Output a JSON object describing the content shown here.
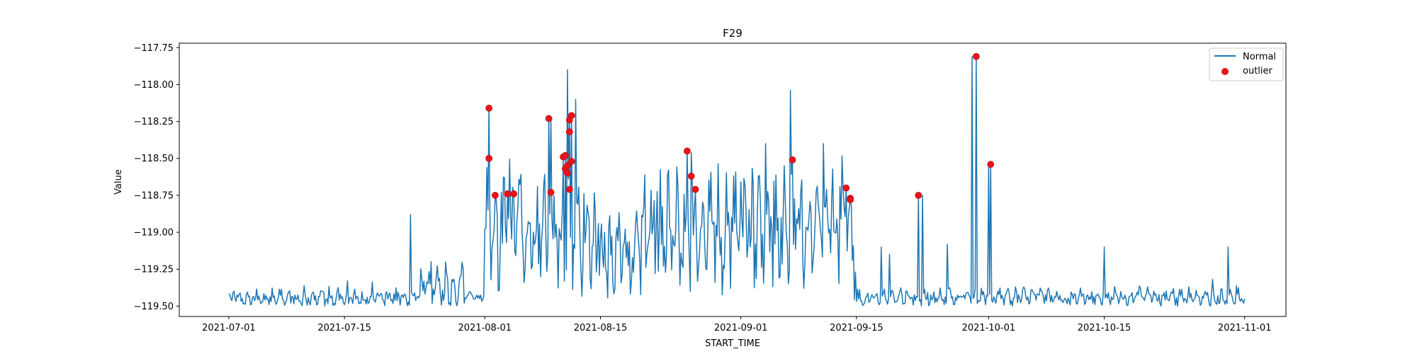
{
  "chart_data": {
    "type": "line",
    "title": "F29",
    "xlabel": "START_TIME",
    "ylabel": "Value",
    "xlim": [
      "2021-06-25",
      "2021-11-06"
    ],
    "ylim": [
      -119.57,
      -117.72
    ],
    "x_ticks": [
      "2021-07-01",
      "2021-07-15",
      "2021-08-01",
      "2021-08-15",
      "2021-09-01",
      "2021-09-15",
      "2021-10-01",
      "2021-10-15",
      "2021-11-01"
    ],
    "y_ticks": [
      -119.5,
      -119.25,
      -119.0,
      -118.75,
      -118.5,
      -118.25,
      -118.0,
      -117.75
    ],
    "y_tick_labels": [
      "−119.50",
      "−119.25",
      "−119.00",
      "−118.75",
      "−118.50",
      "−118.25",
      "−118.00",
      "−117.75"
    ],
    "grid": false,
    "legend_position": "top-right",
    "colors": {
      "normal": "#1f77b4",
      "outlier": "#e8141a"
    },
    "series": [
      {
        "name": "Normal",
        "type": "line",
        "segments": [
          {
            "start": "2021-07-01",
            "end": "2021-07-24",
            "base": -119.45,
            "amp": 0.09
          },
          {
            "start": "2021-07-24",
            "end": "2021-07-30",
            "base": -119.38,
            "amp": 0.22
          },
          {
            "start": "2021-07-30",
            "end": "2021-08-01",
            "base": -119.44,
            "amp": 0.06
          },
          {
            "start": "2021-08-01",
            "end": "2021-08-15",
            "base": -119.0,
            "amp": 0.55
          },
          {
            "start": "2021-08-15",
            "end": "2021-08-20",
            "base": -119.15,
            "amp": 0.45
          },
          {
            "start": "2021-08-20",
            "end": "2021-09-01",
            "base": -119.0,
            "amp": 0.55
          },
          {
            "start": "2021-09-01",
            "end": "2021-09-15",
            "base": -118.95,
            "amp": 0.6
          },
          {
            "start": "2021-09-15",
            "end": "2021-11-01",
            "base": -119.44,
            "amp": 0.09
          }
        ],
        "spikes": [
          {
            "x": "2021-07-23",
            "y": -118.88
          },
          {
            "x": "2021-08-03",
            "y": -118.73
          },
          {
            "x": "2021-08-09",
            "y": -118.23
          },
          {
            "x": "2021-08-11",
            "y": -117.9
          },
          {
            "x": "2021-08-12",
            "y": -118.1
          },
          {
            "x": "2021-08-26",
            "y": -118.46
          },
          {
            "x": "2021-09-04",
            "y": -118.4
          },
          {
            "x": "2021-09-07",
            "y": -118.04
          },
          {
            "x": "2021-09-11",
            "y": -118.4
          },
          {
            "x": "2021-09-18",
            "y": -119.1
          },
          {
            "x": "2021-09-19",
            "y": -119.15
          },
          {
            "x": "2021-09-23",
            "y": -118.75
          },
          {
            "x": "2021-09-26",
            "y": -119.08
          },
          {
            "x": "2021-09-29",
            "y": -117.81
          },
          {
            "x": "2021-10-01",
            "y": -118.55
          },
          {
            "x": "2021-10-15",
            "y": -119.1
          },
          {
            "x": "2021-10-30",
            "y": -119.1
          }
        ]
      },
      {
        "name": "outlier",
        "type": "scatter",
        "points": [
          {
            "x": "2021-08-01T12:00",
            "y": -118.16
          },
          {
            "x": "2021-08-01T12:00",
            "y": -118.5
          },
          {
            "x": "2021-08-02T06:00",
            "y": -118.75
          },
          {
            "x": "2021-08-03T18:00",
            "y": -118.74
          },
          {
            "x": "2021-08-04T12:00",
            "y": -118.74
          },
          {
            "x": "2021-08-08T18:00",
            "y": -118.23
          },
          {
            "x": "2021-08-09T00:00",
            "y": -118.73
          },
          {
            "x": "2021-08-10T12:00",
            "y": -118.49
          },
          {
            "x": "2021-08-10T18:00",
            "y": -118.48
          },
          {
            "x": "2021-08-10T18:00",
            "y": -118.57
          },
          {
            "x": "2021-08-11T00:00",
            "y": -118.55
          },
          {
            "x": "2021-08-11T00:00",
            "y": -118.6
          },
          {
            "x": "2021-08-11T06:00",
            "y": -118.32
          },
          {
            "x": "2021-08-11T06:00",
            "y": -118.24
          },
          {
            "x": "2021-08-11T06:00",
            "y": -118.71
          },
          {
            "x": "2021-08-11T12:00",
            "y": -118.21
          },
          {
            "x": "2021-08-11T12:00",
            "y": -118.52
          },
          {
            "x": "2021-08-25T12:00",
            "y": -118.45
          },
          {
            "x": "2021-08-26T00:00",
            "y": -118.62
          },
          {
            "x": "2021-08-26T12:00",
            "y": -118.71
          },
          {
            "x": "2021-09-07T06:00",
            "y": -118.51
          },
          {
            "x": "2021-09-13T18:00",
            "y": -118.7
          },
          {
            "x": "2021-09-14T06:00",
            "y": -118.77
          },
          {
            "x": "2021-09-14T06:00",
            "y": -118.78
          },
          {
            "x": "2021-09-22T12:00",
            "y": -118.75
          },
          {
            "x": "2021-09-29T12:00",
            "y": -117.81
          },
          {
            "x": "2021-10-01T06:00",
            "y": -118.54
          }
        ]
      }
    ]
  }
}
